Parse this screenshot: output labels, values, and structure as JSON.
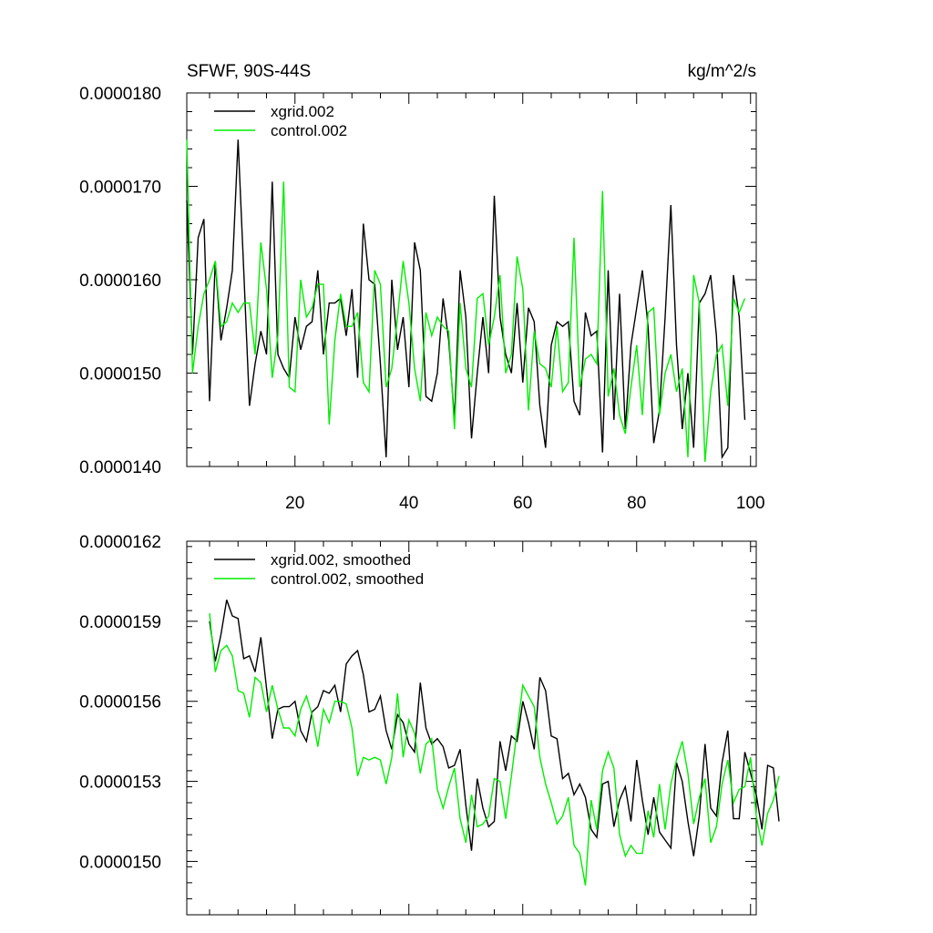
{
  "chart_data": [
    {
      "type": "line",
      "title_left": "SFWF, 90S-44S",
      "title_right": "kg/m^2/s",
      "xlim": [
        1,
        101
      ],
      "ylim": [
        1.4e-05,
        1.8e-05
      ],
      "y_ticks": [
        1.4e-05,
        1.5e-05,
        1.6e-05,
        1.7e-05,
        1.8e-05
      ],
      "y_tick_labels": [
        "0.0000140",
        "0.0000150",
        "0.0000160",
        "0.0000170",
        "0.0000180"
      ],
      "x_ticks": [
        20,
        40,
        60,
        80,
        100
      ],
      "x_tick_labels": [
        "20",
        "40",
        "60",
        "80",
        "100"
      ],
      "legend": "top-left",
      "series": [
        {
          "name": "xgrid.002",
          "color": "#000000",
          "x_start": 1,
          "values": [
            16.85,
            15.2,
            16.45,
            16.65,
            14.7,
            16.2,
            15.35,
            15.7,
            16.1,
            17.5,
            16.1,
            14.65,
            15.1,
            15.45,
            15.2,
            17.05,
            15.2,
            15.05,
            14.95,
            15.6,
            15.25,
            15.5,
            15.55,
            16.1,
            15.2,
            15.75,
            15.75,
            15.8,
            15.4,
            15.9,
            14.95,
            16.6,
            16.0,
            15.95,
            15.1,
            14.1,
            16.0,
            15.25,
            15.6,
            14.85,
            16.4,
            16.1,
            14.75,
            14.7,
            15.0,
            15.8,
            15.35,
            14.5,
            16.1,
            15.6,
            14.3,
            15.0,
            15.6,
            15.0,
            16.9,
            15.6,
            15.2,
            15.0,
            15.75,
            14.9,
            15.7,
            15.55,
            14.65,
            14.2,
            15.3,
            15.55,
            15.5,
            15.55,
            14.7,
            14.55,
            15.65,
            15.4,
            15.45,
            14.15,
            16.1,
            14.5,
            15.85,
            14.4,
            15.3,
            15.7,
            16.1,
            15.5,
            14.25,
            14.6,
            15.6,
            16.8,
            15.3,
            14.4,
            15.0,
            14.2,
            15.75,
            15.85,
            16.05,
            15.4,
            14.1,
            14.2,
            16.05,
            15.6,
            14.5
          ]
        },
        {
          "name": "control.002",
          "color": "#00ee00",
          "x_start": 1,
          "values": [
            17.5,
            15.0,
            15.5,
            15.85,
            16.0,
            16.2,
            15.5,
            15.55,
            15.75,
            15.65,
            15.75,
            15.75,
            15.2,
            16.4,
            15.9,
            14.95,
            15.4,
            17.05,
            14.85,
            14.8,
            16.0,
            15.6,
            15.7,
            15.95,
            15.95,
            14.45,
            15.35,
            15.85,
            15.5,
            15.5,
            15.65,
            14.9,
            14.8,
            16.1,
            15.95,
            14.85,
            15.05,
            15.6,
            16.2,
            15.75,
            15.05,
            14.7,
            15.65,
            15.4,
            15.6,
            15.5,
            15.45,
            14.4,
            15.75,
            15.05,
            14.85,
            15.8,
            15.85,
            15.3,
            15.6,
            16.05,
            15.0,
            15.2,
            16.25,
            15.9,
            14.6,
            15.45,
            15.1,
            15.05,
            14.85,
            15.5,
            14.8,
            14.9,
            16.45,
            14.85,
            15.15,
            15.2,
            15.1,
            16.95,
            14.75,
            15.05,
            14.55,
            14.35,
            14.85,
            15.3,
            14.55,
            15.65,
            15.7,
            14.55,
            15.0,
            15.2,
            14.8,
            15.05,
            14.1,
            16.05,
            15.75,
            14.05,
            14.8,
            15.2,
            15.3,
            14.65,
            15.8,
            15.65,
            15.8
          ]
        }
      ]
    },
    {
      "type": "line",
      "xlim": [
        1,
        101
      ],
      "ylim": [
        1.48e-05,
        1.62e-05
      ],
      "y_ticks": [
        1.5e-05,
        1.53e-05,
        1.56e-05,
        1.59e-05,
        1.62e-05
      ],
      "y_tick_labels": [
        "0.0000150",
        "0.0000153",
        "0.0000156",
        "0.0000159",
        "0.0000162"
      ],
      "x_ticks": [
        20,
        40,
        60,
        80,
        100
      ],
      "x_tick_labels": [],
      "legend": "top-left",
      "series": [
        {
          "name": "xgrid.002, smoothed",
          "color": "#000000",
          "x_start": 5,
          "values": [
            15.9,
            15.75,
            15.85,
            15.98,
            15.92,
            15.91,
            15.76,
            15.77,
            15.71,
            15.84,
            15.65,
            15.46,
            15.57,
            15.58,
            15.58,
            15.6,
            15.49,
            15.45,
            15.56,
            15.58,
            15.64,
            15.63,
            15.66,
            15.56,
            15.74,
            15.77,
            15.79,
            15.7,
            15.56,
            15.57,
            15.62,
            15.49,
            15.42,
            15.55,
            15.52,
            15.44,
            15.41,
            15.67,
            15.5,
            15.44,
            15.46,
            15.43,
            15.35,
            15.36,
            15.42,
            15.21,
            15.04,
            15.31,
            15.2,
            15.13,
            15.15,
            15.45,
            15.34,
            15.47,
            15.45,
            15.6,
            15.52,
            15.42,
            15.69,
            15.64,
            15.47,
            15.46,
            15.31,
            15.33,
            15.25,
            15.29,
            15.24,
            15.12,
            15.09,
            15.29,
            15.3,
            15.13,
            15.23,
            15.28,
            15.15,
            15.38,
            15.23,
            15.1,
            15.24,
            15.11,
            15.08,
            15.05,
            15.37,
            15.3,
            15.15,
            15.02,
            15.17,
            15.44,
            15.2,
            15.17,
            15.37,
            15.49,
            15.16,
            15.16,
            15.41,
            15.33,
            15.25,
            15.12,
            15.36,
            15.35,
            15.15
          ]
        },
        {
          "name": "control.002, smoothed",
          "color": "#00ee00",
          "x_start": 5,
          "values": [
            15.93,
            15.71,
            15.79,
            15.81,
            15.77,
            15.64,
            15.63,
            15.54,
            15.69,
            15.67,
            15.56,
            15.66,
            15.57,
            15.5,
            15.5,
            15.47,
            15.57,
            15.62,
            15.55,
            15.43,
            15.57,
            15.52,
            15.6,
            15.6,
            15.59,
            15.5,
            15.32,
            15.39,
            15.38,
            15.39,
            15.38,
            15.29,
            15.39,
            15.63,
            15.39,
            15.53,
            15.48,
            15.33,
            15.44,
            15.46,
            15.27,
            15.2,
            15.28,
            15.35,
            15.16,
            15.07,
            15.25,
            15.13,
            15.14,
            15.17,
            15.31,
            15.3,
            15.16,
            15.32,
            15.49,
            15.66,
            15.62,
            15.58,
            15.39,
            15.29,
            15.22,
            15.14,
            15.17,
            15.24,
            15.06,
            15.03,
            14.91,
            15.23,
            15.12,
            15.34,
            15.41,
            15.35,
            15.1,
            15.02,
            15.06,
            15.03,
            15.03,
            15.19,
            15.09,
            15.29,
            15.12,
            15.29,
            15.38,
            15.45,
            15.33,
            15.14,
            15.24,
            15.31,
            15.07,
            15.13,
            15.29,
            15.38,
            15.22,
            15.27,
            15.28,
            15.39,
            15.17,
            15.06,
            15.18,
            15.23,
            15.32
          ]
        }
      ]
    }
  ]
}
